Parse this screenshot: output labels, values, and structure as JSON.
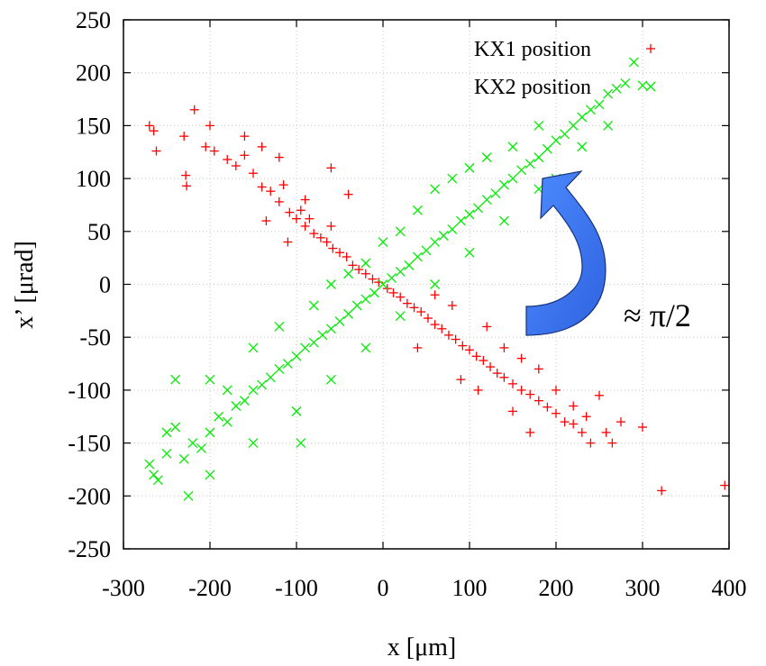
{
  "chart_data": {
    "type": "scatter",
    "xlabel": "x [μm]",
    "ylabel": "x’ [μrad]",
    "xlim": [
      -300,
      400
    ],
    "ylim": [
      -250,
      250
    ],
    "xticks": [
      -300,
      -200,
      -100,
      0,
      100,
      200,
      300,
      400
    ],
    "yticks": [
      -250,
      -200,
      -150,
      -100,
      -50,
      0,
      50,
      100,
      150,
      200,
      250
    ],
    "grid": true,
    "legend_position": "top-right",
    "annotation": {
      "text": "≈ π/2",
      "arrow_color": "#2f63e0"
    },
    "series": [
      {
        "name": "KX1 position",
        "marker": "+",
        "color": "#ff0000",
        "points": [
          [
            -270,
            150
          ],
          [
            -265,
            145
          ],
          [
            -262,
            126
          ],
          [
            -230,
            140
          ],
          [
            -228,
            103
          ],
          [
            -227,
            93
          ],
          [
            -218,
            165
          ],
          [
            -205,
            130
          ],
          [
            -195,
            126
          ],
          [
            -180,
            118
          ],
          [
            -170,
            112
          ],
          [
            -160,
            122
          ],
          [
            -150,
            105
          ],
          [
            -140,
            92
          ],
          [
            -130,
            88
          ],
          [
            -120,
            78
          ],
          [
            -115,
            94
          ],
          [
            -108,
            68
          ],
          [
            -100,
            62
          ],
          [
            -95,
            70
          ],
          [
            -90,
            55
          ],
          [
            -85,
            62
          ],
          [
            -80,
            48
          ],
          [
            -72,
            44
          ],
          [
            -65,
            40
          ],
          [
            -58,
            34
          ],
          [
            -50,
            30
          ],
          [
            -42,
            26
          ],
          [
            -35,
            18
          ],
          [
            -28,
            14
          ],
          [
            -20,
            10
          ],
          [
            -12,
            5
          ],
          [
            -5,
            2
          ],
          [
            5,
            -4
          ],
          [
            12,
            -8
          ],
          [
            20,
            -12
          ],
          [
            28,
            -18
          ],
          [
            36,
            -22
          ],
          [
            44,
            -26
          ],
          [
            52,
            -32
          ],
          [
            60,
            -38
          ],
          [
            68,
            -42
          ],
          [
            76,
            -48
          ],
          [
            84,
            -52
          ],
          [
            92,
            -58
          ],
          [
            100,
            -62
          ],
          [
            108,
            -68
          ],
          [
            116,
            -72
          ],
          [
            124,
            -78
          ],
          [
            132,
            -84
          ],
          [
            140,
            -88
          ],
          [
            150,
            -94
          ],
          [
            160,
            -100
          ],
          [
            170,
            -104
          ],
          [
            180,
            -110
          ],
          [
            190,
            -116
          ],
          [
            200,
            -122
          ],
          [
            210,
            -130
          ],
          [
            220,
            -132
          ],
          [
            230,
            -140
          ],
          [
            235,
            -125
          ],
          [
            240,
            -150
          ],
          [
            258,
            -140
          ],
          [
            265,
            -150
          ],
          [
            275,
            -130
          ],
          [
            300,
            -135
          ],
          [
            322,
            -195
          ],
          [
            395,
            -190
          ],
          [
            -135,
            60
          ],
          [
            -110,
            40
          ],
          [
            -90,
            80
          ],
          [
            -60,
            55
          ],
          [
            60,
            -10
          ],
          [
            80,
            -20
          ],
          [
            120,
            -40
          ],
          [
            140,
            -60
          ],
          [
            160,
            -70
          ],
          [
            180,
            -80
          ],
          [
            -160,
            140
          ],
          [
            -140,
            130
          ],
          [
            -120,
            120
          ],
          [
            -60,
            110
          ],
          [
            -40,
            85
          ],
          [
            -200,
            150
          ],
          [
            40,
            -60
          ],
          [
            90,
            -90
          ],
          [
            110,
            -100
          ],
          [
            200,
            -100
          ],
          [
            220,
            -115
          ],
          [
            250,
            -105
          ],
          [
            150,
            -120
          ],
          [
            170,
            -140
          ]
        ]
      },
      {
        "name": "KX2 position",
        "marker": "x",
        "color": "#00ee00",
        "points": [
          [
            -270,
            -170
          ],
          [
            -265,
            -180
          ],
          [
            -260,
            -185
          ],
          [
            -250,
            -140
          ],
          [
            -240,
            -135
          ],
          [
            -230,
            -165
          ],
          [
            -225,
            -200
          ],
          [
            -220,
            -150
          ],
          [
            -210,
            -155
          ],
          [
            -200,
            -140
          ],
          [
            -190,
            -125
          ],
          [
            -180,
            -130
          ],
          [
            -170,
            -115
          ],
          [
            -160,
            -110
          ],
          [
            -150,
            -100
          ],
          [
            -140,
            -95
          ],
          [
            -130,
            -88
          ],
          [
            -120,
            -80
          ],
          [
            -110,
            -75
          ],
          [
            -100,
            -68
          ],
          [
            -95,
            -150
          ],
          [
            -90,
            -60
          ],
          [
            -80,
            -55
          ],
          [
            -70,
            -48
          ],
          [
            -60,
            -42
          ],
          [
            -50,
            -35
          ],
          [
            -40,
            -28
          ],
          [
            -30,
            -20
          ],
          [
            -20,
            -14
          ],
          [
            -10,
            -8
          ],
          [
            0,
            0
          ],
          [
            10,
            6
          ],
          [
            20,
            12
          ],
          [
            30,
            18
          ],
          [
            40,
            26
          ],
          [
            50,
            32
          ],
          [
            60,
            40
          ],
          [
            70,
            46
          ],
          [
            80,
            52
          ],
          [
            90,
            60
          ],
          [
            100,
            66
          ],
          [
            110,
            72
          ],
          [
            120,
            80
          ],
          [
            130,
            86
          ],
          [
            140,
            94
          ],
          [
            150,
            100
          ],
          [
            160,
            108
          ],
          [
            170,
            114
          ],
          [
            180,
            120
          ],
          [
            190,
            128
          ],
          [
            200,
            136
          ],
          [
            210,
            142
          ],
          [
            220,
            150
          ],
          [
            230,
            158
          ],
          [
            240,
            165
          ],
          [
            250,
            170
          ],
          [
            260,
            180
          ],
          [
            270,
            185
          ],
          [
            280,
            190
          ],
          [
            290,
            210
          ],
          [
            300,
            188
          ],
          [
            -240,
            -90
          ],
          [
            -200,
            -90
          ],
          [
            -150,
            -60
          ],
          [
            -120,
            -40
          ],
          [
            -80,
            -20
          ],
          [
            -60,
            0
          ],
          [
            -40,
            10
          ],
          [
            -20,
            20
          ],
          [
            0,
            40
          ],
          [
            20,
            50
          ],
          [
            40,
            70
          ],
          [
            60,
            90
          ],
          [
            80,
            100
          ],
          [
            100,
            110
          ],
          [
            120,
            120
          ],
          [
            -200,
            -180
          ],
          [
            -150,
            -150
          ],
          [
            -100,
            -120
          ],
          [
            -60,
            -90
          ],
          [
            -20,
            -60
          ],
          [
            20,
            -30
          ],
          [
            60,
            0
          ],
          [
            100,
            30
          ],
          [
            140,
            60
          ],
          [
            180,
            90
          ],
          [
            -250,
            -160
          ],
          [
            -180,
            -100
          ],
          [
            200,
            100
          ],
          [
            230,
            130
          ],
          [
            260,
            150
          ],
          [
            150,
            130
          ],
          [
            180,
            150
          ]
        ]
      }
    ]
  }
}
